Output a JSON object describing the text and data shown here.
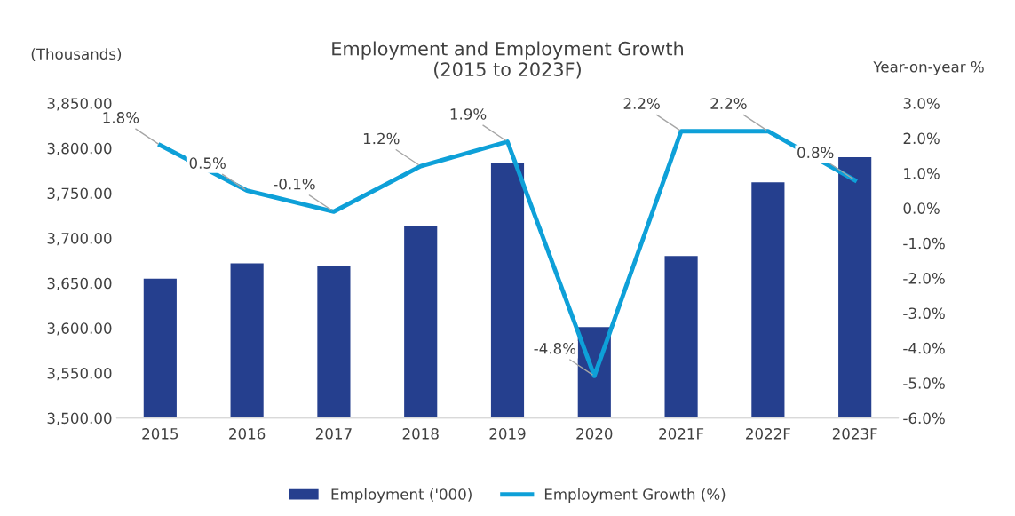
{
  "chart_data": {
    "type": "bar",
    "title": "Employment and Employment Growth\n(2015 to 2023F)",
    "ylabel": "(Thousands)",
    "y2label": "Year-on-year %",
    "categories": [
      "2015",
      "2016",
      "2017",
      "2018",
      "2019",
      "2020",
      "2021F",
      "2022F",
      "2023F"
    ],
    "series": [
      {
        "name": "Employment ('000)",
        "color": "#253f8e",
        "values": [
          3655,
          3672,
          3669,
          3713,
          3783,
          3601,
          3680,
          3762,
          3790
        ]
      },
      {
        "name": "Employment Growth (%)",
        "type": "line",
        "axis": "y2",
        "color": "#0ea0d8",
        "values": [
          1.8,
          0.5,
          -0.1,
          1.2,
          1.9,
          -4.8,
          2.2,
          2.2,
          0.8
        ],
        "value_labels": [
          "1.8%",
          "0.5%",
          "-0.1%",
          "1.2%",
          "1.9%",
          "-4.8%",
          "2.2%",
          "2.2%",
          "0.8%"
        ]
      }
    ],
    "ylim": [
      3500,
      3850
    ],
    "yticks": [
      {
        "value": 3500,
        "label": "3,500.00"
      },
      {
        "value": 3550,
        "label": "3,550.00"
      },
      {
        "value": 3600,
        "label": "3,600.00"
      },
      {
        "value": 3650,
        "label": "3,650.00"
      },
      {
        "value": 3700,
        "label": "3,700.00"
      },
      {
        "value": 3750,
        "label": "3,750.00"
      },
      {
        "value": 3800,
        "label": "3,800.00"
      },
      {
        "value": 3850,
        "label": "3,850.00"
      }
    ],
    "y2lim": [
      -6,
      3
    ],
    "y2ticks": [
      {
        "value": -6,
        "label": "-6.0%"
      },
      {
        "value": -5,
        "label": "-5.0%"
      },
      {
        "value": -4,
        "label": "-4.0%"
      },
      {
        "value": -3,
        "label": "-3.0%"
      },
      {
        "value": -2,
        "label": "-2.0%"
      },
      {
        "value": -1,
        "label": "-1.0%"
      },
      {
        "value": 0,
        "label": "0.0%"
      },
      {
        "value": 1,
        "label": "1.0%"
      },
      {
        "value": 2,
        "label": "2.0%"
      },
      {
        "value": 3,
        "label": "3.0%"
      }
    ],
    "legend": "bottom",
    "grid": false
  }
}
